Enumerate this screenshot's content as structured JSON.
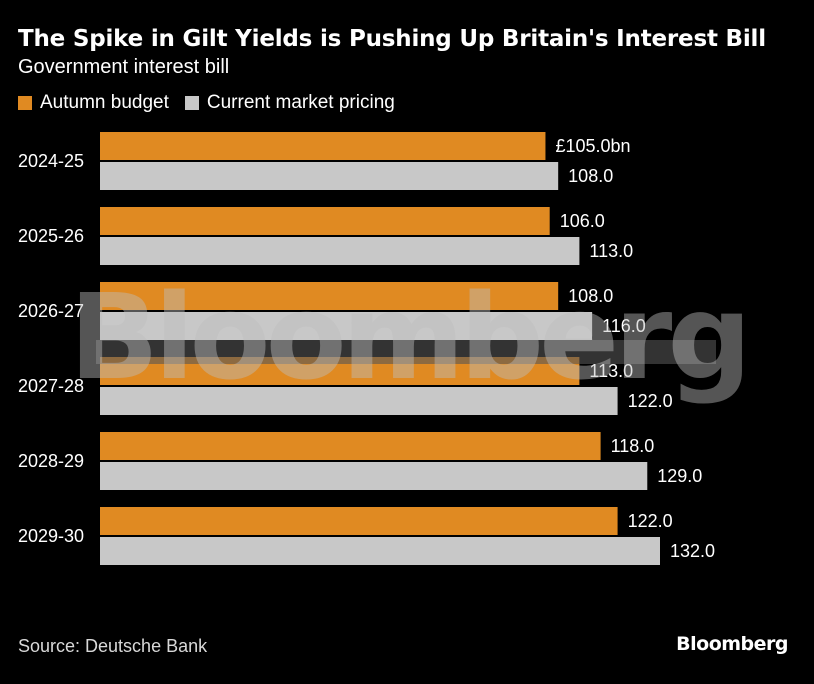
{
  "title": "The Spike in Gilt Yields is Pushing Up Britain's Interest Bill",
  "subtitle": "Government interest bill",
  "legend": [
    {
      "label": "Autumn budget",
      "color": "#e08a22"
    },
    {
      "label": "Current market pricing",
      "color": "#c8c8c8"
    }
  ],
  "source": "Source: Deutsche Bank",
  "brand": "Bloomberg",
  "watermark": "Bloomberg",
  "chart_data": {
    "type": "bar",
    "orientation": "horizontal",
    "title": "The Spike in Gilt Yields is Pushing Up Britain's Interest Bill",
    "subtitle": "Government interest bill",
    "unit": "£bn",
    "categories": [
      "2024-25",
      "2025-26",
      "2026-27",
      "2027-28",
      "2028-29",
      "2029-30"
    ],
    "series": [
      {
        "name": "Autumn budget",
        "color": "#e08a22",
        "values": [
          105.0,
          106.0,
          108.0,
          113.0,
          118.0,
          122.0
        ],
        "labels": [
          "£105.0bn",
          "106.0",
          "108.0",
          "113.0",
          "118.0",
          "122.0"
        ]
      },
      {
        "name": "Current market pricing",
        "color": "#c8c8c8",
        "values": [
          108.0,
          113.0,
          116.0,
          122.0,
          129.0,
          132.0
        ],
        "labels": [
          "108.0",
          "113.0",
          "116.0",
          "122.0",
          "129.0",
          "132.0"
        ]
      }
    ],
    "xlim": [
      0,
      132.0
    ],
    "grid": false,
    "legend_position": "top-left"
  }
}
